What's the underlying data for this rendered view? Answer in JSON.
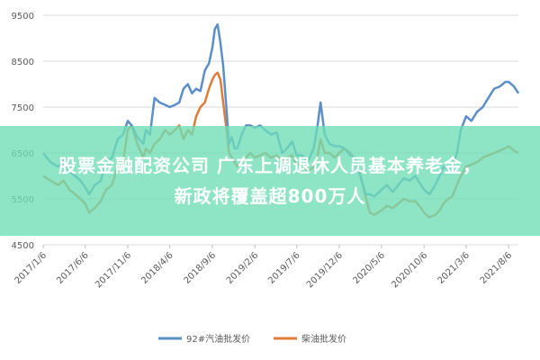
{
  "banner": {
    "line1": "股票金融配资公司 广东上调退休人员基本养老金，",
    "line2": "新政将覆盖超800万人"
  },
  "chart_data": {
    "type": "line",
    "title": "",
    "xlabel": "",
    "ylabel": "",
    "ylim": [
      4500,
      9500
    ],
    "yticks": [
      4500,
      5500,
      6500,
      7500,
      8500,
      9500
    ],
    "xlim": [
      "2017-01-06",
      "2021-09-10"
    ],
    "xticks": [
      "2017/1/6",
      "2017/6/6",
      "2017/11/6",
      "2018/4/6",
      "2018/9/6",
      "2019/2/6",
      "2019/7/6",
      "2019/12/6",
      "2020/5/6",
      "2020/10/6",
      "2021/3/6",
      "2021/8/6"
    ],
    "grid": "horizontal",
    "legend_position": "bottom",
    "colors": {
      "series1": "#5b8fc9",
      "series2": "#e07b39",
      "grid": "#d9d9d9",
      "axis": "#bfbfbf"
    },
    "series": [
      {
        "name": "92#汽油批发价",
        "x": [
          "2017-01-06",
          "2017-02-01",
          "2017-03-01",
          "2017-03-20",
          "2017-04-10",
          "2017-05-01",
          "2017-05-20",
          "2017-06-06",
          "2017-06-20",
          "2017-07-10",
          "2017-08-01",
          "2017-08-20",
          "2017-09-10",
          "2017-10-01",
          "2017-10-20",
          "2017-11-06",
          "2017-11-20",
          "2017-12-10",
          "2018-01-01",
          "2018-01-10",
          "2018-01-25",
          "2018-02-10",
          "2018-03-01",
          "2018-03-20",
          "2018-04-06",
          "2018-04-25",
          "2018-05-10",
          "2018-05-25",
          "2018-06-10",
          "2018-06-25",
          "2018-07-10",
          "2018-07-25",
          "2018-08-10",
          "2018-08-25",
          "2018-09-06",
          "2018-09-15",
          "2018-09-25",
          "2018-10-05",
          "2018-10-15",
          "2018-10-25",
          "2018-11-05",
          "2018-11-15",
          "2018-11-25",
          "2018-12-05",
          "2018-12-20",
          "2019-01-05",
          "2019-01-20",
          "2019-02-06",
          "2019-02-25",
          "2019-03-15",
          "2019-04-05",
          "2019-04-25",
          "2019-05-15",
          "2019-06-01",
          "2019-06-20",
          "2019-07-06",
          "2019-07-25",
          "2019-08-15",
          "2019-09-05",
          "2019-09-18",
          "2019-09-30",
          "2019-10-15",
          "2019-11-01",
          "2019-11-20",
          "2019-12-06",
          "2019-12-25",
          "2020-01-15",
          "2020-02-01",
          "2020-02-20",
          "2020-03-10",
          "2020-03-25",
          "2020-04-10",
          "2020-05-06",
          "2020-05-25",
          "2020-06-15",
          "2020-07-05",
          "2020-07-25",
          "2020-08-15",
          "2020-09-05",
          "2020-09-25",
          "2020-10-06",
          "2020-10-25",
          "2020-11-15",
          "2020-12-01",
          "2020-12-15",
          "2021-01-01",
          "2021-01-15",
          "2021-02-01",
          "2021-02-15",
          "2021-03-06",
          "2021-03-25",
          "2021-04-15",
          "2021-05-05",
          "2021-05-25",
          "2021-06-15",
          "2021-07-05",
          "2021-07-25",
          "2021-08-06",
          "2021-08-25",
          "2021-09-10"
        ],
        "values": [
          6500,
          6300,
          6200,
          6350,
          6100,
          6000,
          5900,
          5750,
          5600,
          5800,
          5900,
          6300,
          6400,
          6800,
          6900,
          7200,
          7100,
          6850,
          6700,
          7000,
          6900,
          7700,
          7600,
          7550,
          7500,
          7550,
          7600,
          7900,
          8000,
          7800,
          7900,
          7850,
          8300,
          8450,
          8800,
          9200,
          9300,
          8900,
          8400,
          7600,
          6700,
          6850,
          6600,
          6600,
          6900,
          7100,
          7100,
          7050,
          7100,
          7000,
          6900,
          6950,
          6500,
          6600,
          6750,
          6450,
          6450,
          6300,
          6600,
          7050,
          7600,
          6900,
          6700,
          6650,
          6650,
          6600,
          6450,
          6400,
          6000,
          5600,
          5600,
          5550,
          5700,
          5800,
          5650,
          5800,
          5950,
          5900,
          6000,
          5800,
          5700,
          5600,
          5800,
          6000,
          6200,
          6150,
          6200,
          6500,
          7000,
          7300,
          7200,
          7400,
          7500,
          7700,
          7900,
          7950,
          8050,
          8050,
          7950,
          7800
        ]
      },
      {
        "name": "柴油批发价",
        "x": [
          "2017-01-06",
          "2017-02-01",
          "2017-03-01",
          "2017-03-20",
          "2017-04-10",
          "2017-05-01",
          "2017-05-20",
          "2017-06-06",
          "2017-06-20",
          "2017-07-10",
          "2017-08-01",
          "2017-08-20",
          "2017-09-10",
          "2017-10-01",
          "2017-10-20",
          "2017-11-06",
          "2017-11-20",
          "2017-12-10",
          "2018-01-01",
          "2018-01-10",
          "2018-01-25",
          "2018-02-10",
          "2018-03-01",
          "2018-03-20",
          "2018-04-06",
          "2018-04-25",
          "2018-05-10",
          "2018-05-25",
          "2018-06-10",
          "2018-06-25",
          "2018-07-10",
          "2018-07-25",
          "2018-08-10",
          "2018-08-25",
          "2018-09-06",
          "2018-09-15",
          "2018-09-25",
          "2018-10-05",
          "2018-10-15",
          "2018-10-25",
          "2018-11-05",
          "2018-11-15",
          "2018-11-25",
          "2018-12-05",
          "2018-12-20",
          "2019-01-05",
          "2019-01-20",
          "2019-02-06",
          "2019-02-25",
          "2019-03-15",
          "2019-04-05",
          "2019-04-25",
          "2019-05-15",
          "2019-06-01",
          "2019-06-20",
          "2019-07-06",
          "2019-07-25",
          "2019-08-15",
          "2019-09-05",
          "2019-09-18",
          "2019-09-30",
          "2019-10-15",
          "2019-11-01",
          "2019-11-20",
          "2019-12-06",
          "2019-12-25",
          "2020-01-15",
          "2020-02-01",
          "2020-02-20",
          "2020-03-10",
          "2020-03-25",
          "2020-04-10",
          "2020-05-06",
          "2020-05-25",
          "2020-06-15",
          "2020-07-05",
          "2020-07-25",
          "2020-08-15",
          "2020-09-05",
          "2020-09-25",
          "2020-10-06",
          "2020-10-25",
          "2020-11-15",
          "2020-12-01",
          "2020-12-15",
          "2021-01-01",
          "2021-01-15",
          "2021-02-01",
          "2021-02-15",
          "2021-03-06",
          "2021-03-25",
          "2021-04-15",
          "2021-05-05",
          "2021-05-25",
          "2021-06-15",
          "2021-07-05",
          "2021-07-25",
          "2021-08-06",
          "2021-08-25",
          "2021-09-10"
        ],
        "values": [
          6000,
          5900,
          5800,
          5900,
          5700,
          5600,
          5500,
          5400,
          5200,
          5300,
          5450,
          5700,
          5800,
          6200,
          6300,
          7000,
          7100,
          6700,
          6400,
          6600,
          6500,
          6700,
          6800,
          7000,
          6900,
          7000,
          7100,
          6800,
          7000,
          6900,
          7300,
          7500,
          7600,
          7900,
          8100,
          8200,
          8250,
          8100,
          7600,
          7100,
          6500,
          6400,
          6300,
          6200,
          6300,
          6400,
          6500,
          6400,
          6450,
          6500,
          6400,
          6450,
          6300,
          6400,
          6450,
          6250,
          6250,
          6100,
          6200,
          6400,
          6800,
          6500,
          6500,
          6400,
          6500,
          6600,
          6500,
          6350,
          6000,
          5550,
          5200,
          5150,
          5250,
          5350,
          5300,
          5400,
          5500,
          5450,
          5450,
          5300,
          5200,
          5100,
          5150,
          5250,
          5400,
          5500,
          5550,
          5800,
          6000,
          6200,
          6250,
          6300,
          6400,
          6450,
          6500,
          6550,
          6600,
          6650,
          6550,
          6500
        ]
      }
    ]
  }
}
